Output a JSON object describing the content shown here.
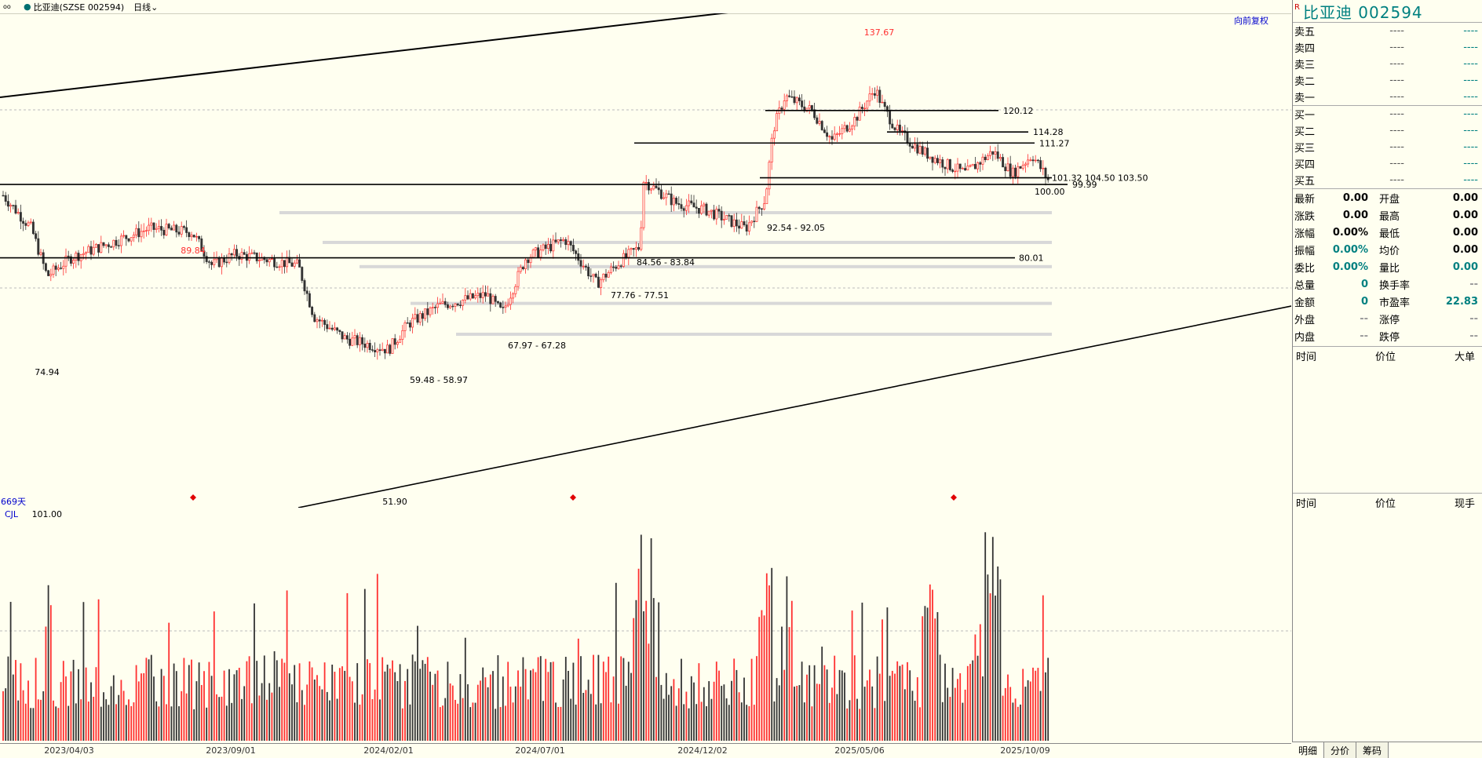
{
  "topbar": {
    "icon": "oo",
    "stock": "比亚迪(SZSE 002594)",
    "period": "日线"
  },
  "main": {
    "fuquan": "向前复权",
    "days": "669天",
    "high_label": "137.67",
    "local_high_label": "89.84",
    "low1_label": "74.94",
    "low2_label": "51.90",
    "hlines": [
      {
        "label": "120.12"
      },
      {
        "label": "114.28"
      },
      {
        "label": "111.27"
      },
      {
        "label": "101.32 104.50 103.50"
      },
      {
        "label": "99.99"
      },
      {
        "label": "100.00"
      },
      {
        "label": "80.01"
      }
    ],
    "zones": [
      {
        "label": "92.54 - 92.05"
      },
      {
        "label": "84.56 - 83.84"
      },
      {
        "label": "77.76 - 77.51"
      },
      {
        "label": "67.97 - 67.28"
      },
      {
        "label": "59.48 - 58.97"
      }
    ],
    "colors": {
      "up": "#ff3030",
      "down": "#333333",
      "line": "#000000",
      "zone": "#d8d8d8",
      "marker": "#e00000"
    }
  },
  "volume": {
    "name": "CJL",
    "value": "101.00"
  },
  "axis": {
    "dates": [
      "2023/04/03",
      "2023/09/01",
      "2024/02/01",
      "2024/07/01",
      "2024/12/02",
      "2025/05/06",
      "2025/10/09"
    ]
  },
  "panel": {
    "rmark": "R",
    "title": "比亚迪  002594",
    "sells": [
      {
        "label": "卖五",
        "price": "----",
        "vol": "----"
      },
      {
        "label": "卖四",
        "price": "----",
        "vol": "----"
      },
      {
        "label": "卖三",
        "price": "----",
        "vol": "----"
      },
      {
        "label": "卖二",
        "price": "----",
        "vol": "----"
      },
      {
        "label": "卖一",
        "price": "----",
        "vol": "----"
      }
    ],
    "buys": [
      {
        "label": "买一",
        "price": "----",
        "vol": "----"
      },
      {
        "label": "买二",
        "price": "----",
        "vol": "----"
      },
      {
        "label": "买三",
        "price": "----",
        "vol": "----"
      },
      {
        "label": "买四",
        "price": "----",
        "vol": "----"
      },
      {
        "label": "买五",
        "price": "----",
        "vol": "----"
      }
    ],
    "quotes": [
      {
        "a": "最新",
        "av": "0.00",
        "b": "开盘",
        "bv": "0.00"
      },
      {
        "a": "涨跌",
        "av": "0.00",
        "b": "最高",
        "bv": "0.00"
      },
      {
        "a": "涨幅",
        "av": "0.00%",
        "b": "最低",
        "bv": "0.00"
      },
      {
        "a": "振幅",
        "av": "0.00%",
        "b": "均价",
        "bv": "0.00"
      },
      {
        "a": "委比",
        "av": "0.00%",
        "b": "量比",
        "bv": "0.00"
      },
      {
        "a": "总量",
        "av": "0",
        "b": "换手率",
        "bv": "--"
      },
      {
        "a": "金额",
        "av": "0",
        "b": "市盈率",
        "bv": "22.83"
      },
      {
        "a": "外盘",
        "av": "--",
        "b": "涨停",
        "bv": "--"
      },
      {
        "a": "内盘",
        "av": "--",
        "b": "跌停",
        "bv": "--"
      }
    ],
    "ticks_header": {
      "time": "时间",
      "price": "价位",
      "big": "大单"
    },
    "deals_header": {
      "time": "时间",
      "price": "价位",
      "hand": "现手"
    },
    "tabs": [
      "明细",
      "分价",
      "筹码"
    ]
  }
}
